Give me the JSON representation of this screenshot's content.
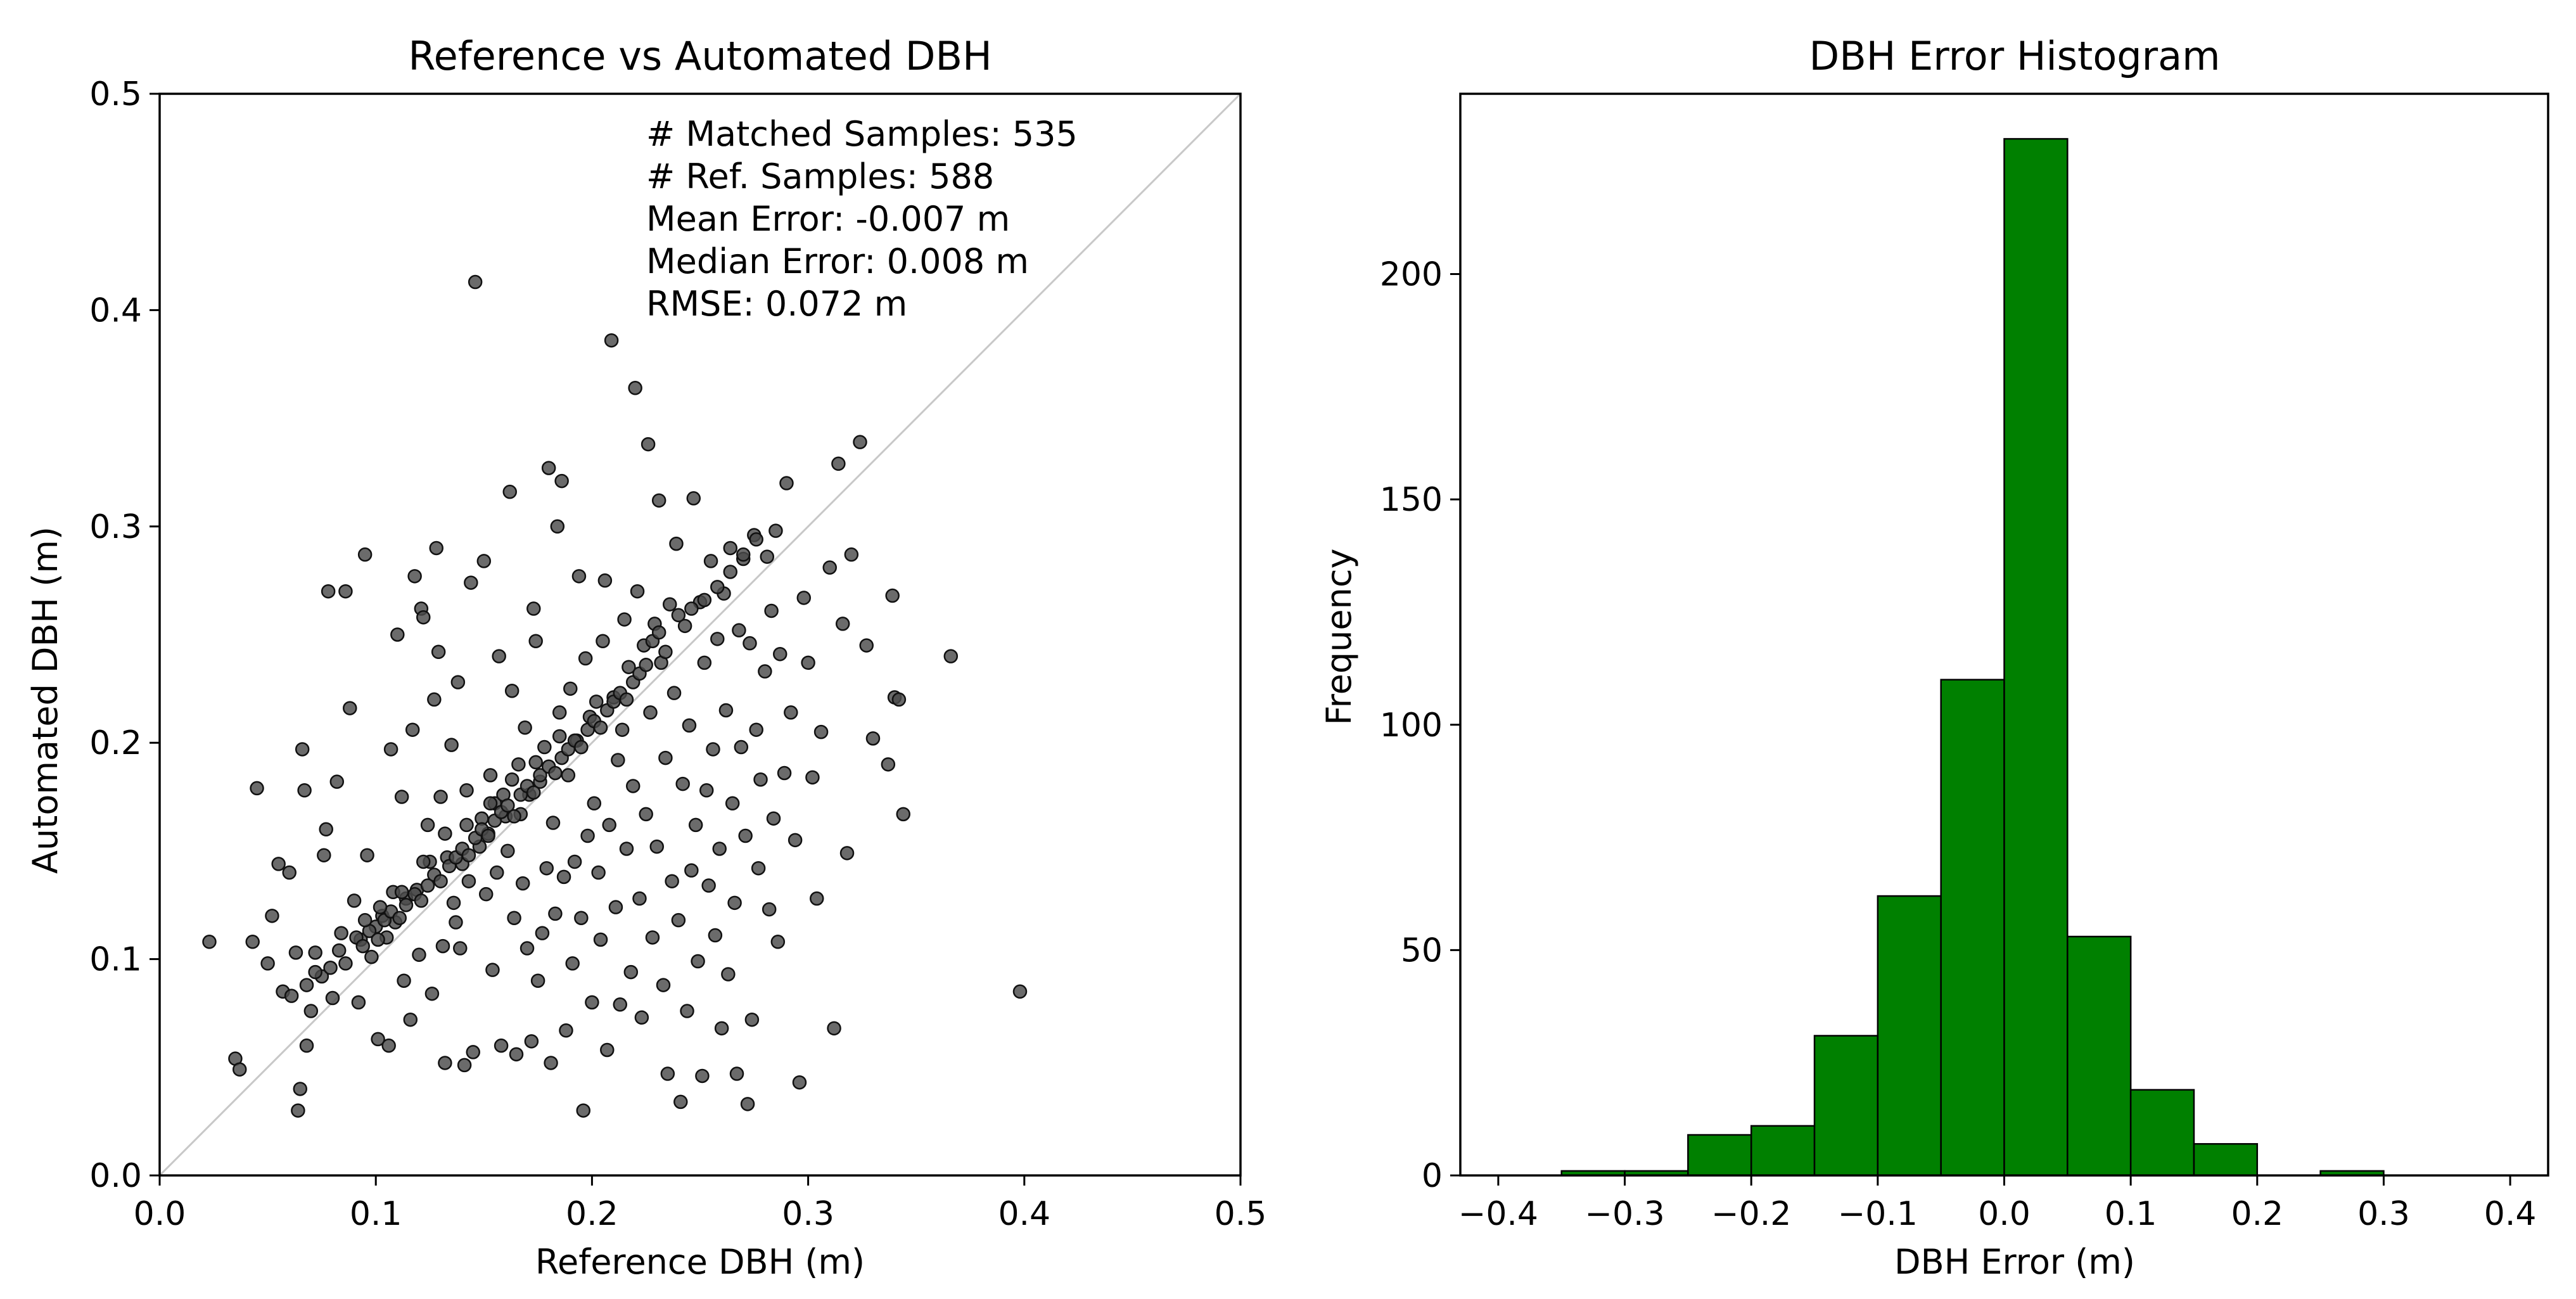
{
  "chart_data": [
    {
      "type": "scatter",
      "title": "Reference vs Automated DBH",
      "xlabel": "Reference DBH (m)",
      "ylabel": "Automated DBH (m)",
      "xlim": [
        0.0,
        0.5
      ],
      "ylim": [
        0.0,
        0.5
      ],
      "xticks": [
        "0.0",
        "0.1",
        "0.2",
        "0.3",
        "0.4",
        "0.5"
      ],
      "yticks": [
        "0.0",
        "0.1",
        "0.2",
        "0.3",
        "0.4",
        "0.5"
      ],
      "grid": false,
      "identity_line": true,
      "marker_color": "#4a4a4a",
      "annotations": [
        "# Matched Samples: 535",
        "# Ref. Samples: 588",
        "Mean Error: -0.007 m",
        "Median Error: 0.008 m",
        "RMSE: 0.072 m"
      ],
      "points": [
        [
          0.023,
          0.108
        ],
        [
          0.035,
          0.054
        ],
        [
          0.037,
          0.049
        ],
        [
          0.043,
          0.108
        ],
        [
          0.045,
          0.179
        ],
        [
          0.05,
          0.098
        ],
        [
          0.052,
          0.12
        ],
        [
          0.055,
          0.144
        ],
        [
          0.057,
          0.085
        ],
        [
          0.06,
          0.14
        ],
        [
          0.063,
          0.103
        ],
        [
          0.064,
          0.03
        ],
        [
          0.065,
          0.04
        ],
        [
          0.066,
          0.197
        ],
        [
          0.067,
          0.178
        ],
        [
          0.068,
          0.06
        ],
        [
          0.07,
          0.076
        ],
        [
          0.072,
          0.103
        ],
        [
          0.075,
          0.092
        ],
        [
          0.076,
          0.148
        ],
        [
          0.077,
          0.16
        ],
        [
          0.078,
          0.27
        ],
        [
          0.08,
          0.082
        ],
        [
          0.082,
          0.182
        ],
        [
          0.084,
          0.112
        ],
        [
          0.086,
          0.27
        ],
        [
          0.088,
          0.216
        ],
        [
          0.09,
          0.127
        ],
        [
          0.092,
          0.08
        ],
        [
          0.093,
          0.109
        ],
        [
          0.095,
          0.287
        ],
        [
          0.096,
          0.148
        ],
        [
          0.098,
          0.101
        ],
        [
          0.1,
          0.115
        ],
        [
          0.101,
          0.063
        ],
        [
          0.103,
          0.12
        ],
        [
          0.105,
          0.11
        ],
        [
          0.106,
          0.06
        ],
        [
          0.107,
          0.197
        ],
        [
          0.108,
          0.131
        ],
        [
          0.109,
          0.117
        ],
        [
          0.11,
          0.25
        ],
        [
          0.112,
          0.175
        ],
        [
          0.113,
          0.09
        ],
        [
          0.114,
          0.128
        ],
        [
          0.116,
          0.072
        ],
        [
          0.117,
          0.206
        ],
        [
          0.118,
          0.277
        ],
        [
          0.119,
          0.132
        ],
        [
          0.12,
          0.102
        ],
        [
          0.121,
          0.262
        ],
        [
          0.122,
          0.258
        ],
        [
          0.124,
          0.162
        ],
        [
          0.125,
          0.145
        ],
        [
          0.126,
          0.084
        ],
        [
          0.127,
          0.22
        ],
        [
          0.128,
          0.29
        ],
        [
          0.129,
          0.242
        ],
        [
          0.13,
          0.175
        ],
        [
          0.131,
          0.106
        ],
        [
          0.132,
          0.052
        ],
        [
          0.133,
          0.147
        ],
        [
          0.135,
          0.199
        ],
        [
          0.136,
          0.126
        ],
        [
          0.137,
          0.117
        ],
        [
          0.138,
          0.228
        ],
        [
          0.139,
          0.105
        ],
        [
          0.14,
          0.144
        ],
        [
          0.141,
          0.051
        ],
        [
          0.142,
          0.178
        ],
        [
          0.143,
          0.136
        ],
        [
          0.144,
          0.274
        ],
        [
          0.145,
          0.057
        ],
        [
          0.146,
          0.413
        ],
        [
          0.148,
          0.152
        ],
        [
          0.149,
          0.165
        ],
        [
          0.15,
          0.284
        ],
        [
          0.151,
          0.13
        ],
        [
          0.152,
          0.158
        ],
        [
          0.153,
          0.185
        ],
        [
          0.154,
          0.095
        ],
        [
          0.155,
          0.172
        ],
        [
          0.156,
          0.14
        ],
        [
          0.157,
          0.24
        ],
        [
          0.158,
          0.06
        ],
        [
          0.159,
          0.176
        ],
        [
          0.16,
          0.166
        ],
        [
          0.161,
          0.15
        ],
        [
          0.162,
          0.316
        ],
        [
          0.163,
          0.224
        ],
        [
          0.164,
          0.119
        ],
        [
          0.165,
          0.056
        ],
        [
          0.166,
          0.19
        ],
        [
          0.167,
          0.167
        ],
        [
          0.168,
          0.135
        ],
        [
          0.169,
          0.207
        ],
        [
          0.17,
          0.105
        ],
        [
          0.171,
          0.176
        ],
        [
          0.172,
          0.062
        ],
        [
          0.173,
          0.262
        ],
        [
          0.174,
          0.247
        ],
        [
          0.175,
          0.09
        ],
        [
          0.176,
          0.182
        ],
        [
          0.177,
          0.112
        ],
        [
          0.178,
          0.198
        ],
        [
          0.179,
          0.142
        ],
        [
          0.18,
          0.327
        ],
        [
          0.181,
          0.052
        ],
        [
          0.182,
          0.163
        ],
        [
          0.183,
          0.121
        ],
        [
          0.184,
          0.3
        ],
        [
          0.185,
          0.214
        ],
        [
          0.186,
          0.321
        ],
        [
          0.187,
          0.138
        ],
        [
          0.188,
          0.067
        ],
        [
          0.189,
          0.185
        ],
        [
          0.19,
          0.225
        ],
        [
          0.191,
          0.098
        ],
        [
          0.192,
          0.145
        ],
        [
          0.193,
          0.201
        ],
        [
          0.194,
          0.277
        ],
        [
          0.195,
          0.119
        ],
        [
          0.196,
          0.03
        ],
        [
          0.197,
          0.239
        ],
        [
          0.198,
          0.157
        ],
        [
          0.199,
          0.212
        ],
        [
          0.2,
          0.08
        ],
        [
          0.201,
          0.172
        ],
        [
          0.202,
          0.219
        ],
        [
          0.203,
          0.14
        ],
        [
          0.204,
          0.109
        ],
        [
          0.205,
          0.247
        ],
        [
          0.206,
          0.275
        ],
        [
          0.207,
          0.058
        ],
        [
          0.208,
          0.162
        ],
        [
          0.209,
          0.386
        ],
        [
          0.21,
          0.221
        ],
        [
          0.211,
          0.124
        ],
        [
          0.212,
          0.192
        ],
        [
          0.213,
          0.079
        ],
        [
          0.214,
          0.206
        ],
        [
          0.215,
          0.257
        ],
        [
          0.216,
          0.151
        ],
        [
          0.217,
          0.235
        ],
        [
          0.218,
          0.094
        ],
        [
          0.219,
          0.18
        ],
        [
          0.22,
          0.364
        ],
        [
          0.221,
          0.27
        ],
        [
          0.222,
          0.128
        ],
        [
          0.223,
          0.073
        ],
        [
          0.224,
          0.245
        ],
        [
          0.225,
          0.167
        ],
        [
          0.226,
          0.338
        ],
        [
          0.227,
          0.214
        ],
        [
          0.228,
          0.11
        ],
        [
          0.229,
          0.255
        ],
        [
          0.23,
          0.152
        ],
        [
          0.231,
          0.312
        ],
        [
          0.232,
          0.237
        ],
        [
          0.233,
          0.088
        ],
        [
          0.234,
          0.193
        ],
        [
          0.235,
          0.047
        ],
        [
          0.236,
          0.264
        ],
        [
          0.237,
          0.136
        ],
        [
          0.238,
          0.223
        ],
        [
          0.239,
          0.292
        ],
        [
          0.24,
          0.118
        ],
        [
          0.241,
          0.034
        ],
        [
          0.242,
          0.181
        ],
        [
          0.243,
          0.254
        ],
        [
          0.244,
          0.076
        ],
        [
          0.245,
          0.208
        ],
        [
          0.246,
          0.141
        ],
        [
          0.247,
          0.313
        ],
        [
          0.248,
          0.162
        ],
        [
          0.249,
          0.099
        ],
        [
          0.25,
          0.265
        ],
        [
          0.251,
          0.046
        ],
        [
          0.252,
          0.237
        ],
        [
          0.253,
          0.178
        ],
        [
          0.254,
          0.134
        ],
        [
          0.255,
          0.284
        ],
        [
          0.256,
          0.197
        ],
        [
          0.257,
          0.111
        ],
        [
          0.258,
          0.248
        ],
        [
          0.259,
          0.151
        ],
        [
          0.26,
          0.068
        ],
        [
          0.261,
          0.269
        ],
        [
          0.262,
          0.215
        ],
        [
          0.263,
          0.093
        ],
        [
          0.264,
          0.29
        ],
        [
          0.265,
          0.172
        ],
        [
          0.266,
          0.126
        ],
        [
          0.267,
          0.047
        ],
        [
          0.268,
          0.252
        ],
        [
          0.269,
          0.198
        ],
        [
          0.27,
          0.285
        ],
        [
          0.271,
          0.157
        ],
        [
          0.272,
          0.033
        ],
        [
          0.273,
          0.246
        ],
        [
          0.274,
          0.072
        ],
        [
          0.275,
          0.296
        ],
        [
          0.276,
          0.206
        ],
        [
          0.277,
          0.142
        ],
        [
          0.278,
          0.183
        ],
        [
          0.28,
          0.233
        ],
        [
          0.281,
          0.286
        ],
        [
          0.282,
          0.123
        ],
        [
          0.283,
          0.261
        ],
        [
          0.284,
          0.165
        ],
        [
          0.285,
          0.298
        ],
        [
          0.286,
          0.108
        ],
        [
          0.287,
          0.241
        ],
        [
          0.289,
          0.186
        ],
        [
          0.29,
          0.32
        ],
        [
          0.292,
          0.214
        ],
        [
          0.294,
          0.155
        ],
        [
          0.296,
          0.043
        ],
        [
          0.298,
          0.267
        ],
        [
          0.3,
          0.237
        ],
        [
          0.302,
          0.184
        ],
        [
          0.304,
          0.128
        ],
        [
          0.306,
          0.205
        ],
        [
          0.31,
          0.281
        ],
        [
          0.312,
          0.068
        ],
        [
          0.314,
          0.329
        ],
        [
          0.316,
          0.255
        ],
        [
          0.318,
          0.149
        ],
        [
          0.32,
          0.287
        ],
        [
          0.324,
          0.339
        ],
        [
          0.327,
          0.245
        ],
        [
          0.33,
          0.202
        ],
        [
          0.337,
          0.19
        ],
        [
          0.339,
          0.268
        ],
        [
          0.34,
          0.221
        ],
        [
          0.342,
          0.22
        ],
        [
          0.344,
          0.167
        ],
        [
          0.366,
          0.24
        ],
        [
          0.398,
          0.085
        ],
        [
          0.061,
          0.083
        ],
        [
          0.068,
          0.088
        ],
        [
          0.072,
          0.094
        ],
        [
          0.079,
          0.096
        ],
        [
          0.083,
          0.104
        ],
        [
          0.086,
          0.098
        ],
        [
          0.091,
          0.11
        ],
        [
          0.094,
          0.106
        ],
        [
          0.097,
          0.113
        ],
        [
          0.101,
          0.109
        ],
        [
          0.104,
          0.118
        ],
        [
          0.107,
          0.122
        ],
        [
          0.111,
          0.119
        ],
        [
          0.114,
          0.125
        ],
        [
          0.118,
          0.13
        ],
        [
          0.121,
          0.127
        ],
        [
          0.124,
          0.134
        ],
        [
          0.127,
          0.139
        ],
        [
          0.13,
          0.136
        ],
        [
          0.134,
          0.143
        ],
        [
          0.137,
          0.147
        ],
        [
          0.14,
          0.151
        ],
        [
          0.143,
          0.148
        ],
        [
          0.146,
          0.156
        ],
        [
          0.149,
          0.16
        ],
        [
          0.152,
          0.157
        ],
        [
          0.155,
          0.164
        ],
        [
          0.158,
          0.168
        ],
        [
          0.161,
          0.171
        ],
        [
          0.164,
          0.166
        ],
        [
          0.167,
          0.176
        ],
        [
          0.17,
          0.18
        ],
        [
          0.173,
          0.177
        ],
        [
          0.176,
          0.185
        ],
        [
          0.18,
          0.189
        ],
        [
          0.183,
          0.186
        ],
        [
          0.186,
          0.193
        ],
        [
          0.189,
          0.197
        ],
        [
          0.192,
          0.201
        ],
        [
          0.195,
          0.198
        ],
        [
          0.198,
          0.206
        ],
        [
          0.201,
          0.21
        ],
        [
          0.204,
          0.207
        ],
        [
          0.207,
          0.215
        ],
        [
          0.21,
          0.219
        ],
        [
          0.213,
          0.223
        ],
        [
          0.216,
          0.22
        ],
        [
          0.219,
          0.228
        ],
        [
          0.222,
          0.232
        ],
        [
          0.225,
          0.236
        ],
        [
          0.228,
          0.247
        ],
        [
          0.231,
          0.251
        ],
        [
          0.234,
          0.242
        ],
        [
          0.24,
          0.259
        ],
        [
          0.246,
          0.262
        ],
        [
          0.252,
          0.266
        ],
        [
          0.258,
          0.272
        ],
        [
          0.264,
          0.279
        ],
        [
          0.27,
          0.287
        ],
        [
          0.276,
          0.294
        ],
        [
          0.095,
          0.118
        ],
        [
          0.102,
          0.124
        ],
        [
          0.112,
          0.131
        ],
        [
          0.122,
          0.145
        ],
        [
          0.132,
          0.158
        ],
        [
          0.142,
          0.162
        ],
        [
          0.153,
          0.172
        ],
        [
          0.163,
          0.183
        ],
        [
          0.174,
          0.191
        ],
        [
          0.185,
          0.203
        ]
      ]
    },
    {
      "type": "bar",
      "subtype": "histogram",
      "title": "DBH Error Histogram",
      "xlabel": "DBH Error (m)",
      "ylabel": "Frequency",
      "xlim": [
        -0.43,
        0.43
      ],
      "ylim": [
        0,
        240
      ],
      "xticks": [
        "−0.4",
        "−0.3",
        "−0.2",
        "−0.1",
        "0.0",
        "0.1",
        "0.2",
        "0.3",
        "0.4"
      ],
      "yticks": [
        "0",
        "50",
        "100",
        "150",
        "200"
      ],
      "grid": false,
      "bar_color": "#008000",
      "edge_color": "#000000",
      "bins": [
        {
          "from": -0.35,
          "to": -0.3,
          "count": 1
        },
        {
          "from": -0.3,
          "to": -0.25,
          "count": 1
        },
        {
          "from": -0.25,
          "to": -0.2,
          "count": 9
        },
        {
          "from": -0.2,
          "to": -0.15,
          "count": 11
        },
        {
          "from": -0.15,
          "to": -0.1,
          "count": 31
        },
        {
          "from": -0.1,
          "to": -0.05,
          "count": 62
        },
        {
          "from": -0.05,
          "to": 0.0,
          "count": 110
        },
        {
          "from": 0.0,
          "to": 0.05,
          "count": 230
        },
        {
          "from": 0.05,
          "to": 0.1,
          "count": 53
        },
        {
          "from": 0.1,
          "to": 0.15,
          "count": 19
        },
        {
          "from": 0.15,
          "to": 0.2,
          "count": 7
        },
        {
          "from": 0.2,
          "to": 0.25,
          "count": 0
        },
        {
          "from": 0.25,
          "to": 0.3,
          "count": 1
        }
      ]
    }
  ]
}
